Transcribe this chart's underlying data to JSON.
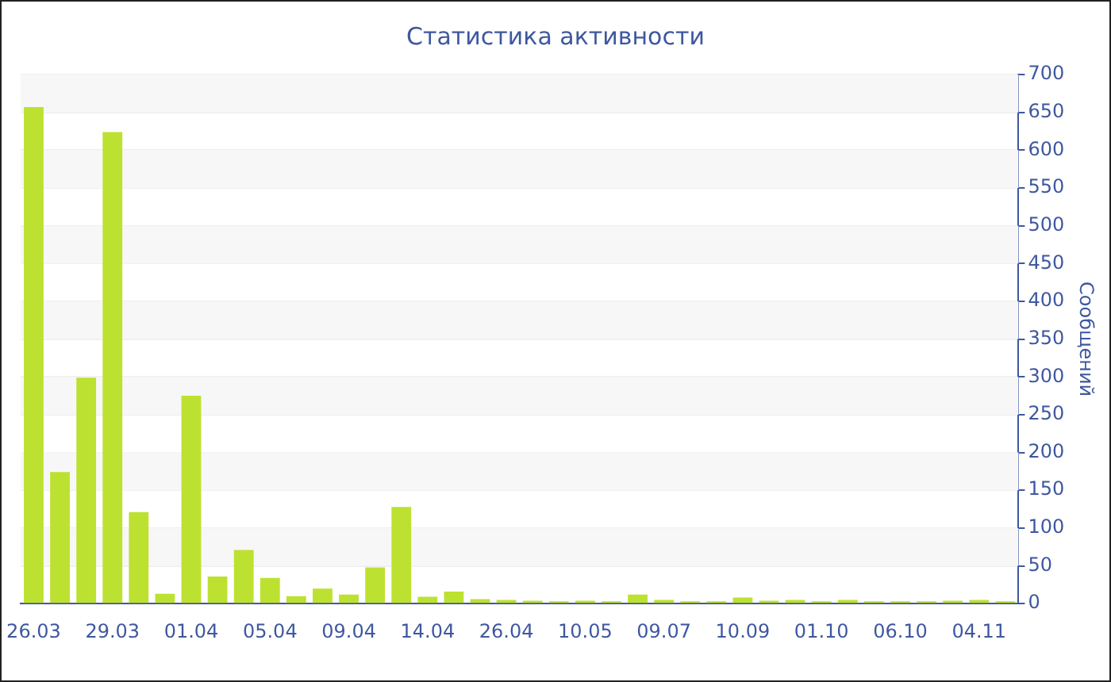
{
  "chart_data": {
    "type": "bar",
    "title": "Статистика активности",
    "ylabel": "Сообщений",
    "categories": [
      "26.03",
      null,
      null,
      "29.03",
      null,
      null,
      "01.04",
      null,
      null,
      "05.04",
      null,
      null,
      "09.04",
      null,
      null,
      "14.04",
      null,
      null,
      "26.04",
      null,
      null,
      "10.05",
      null,
      null,
      "09.07",
      null,
      null,
      "10.09",
      null,
      null,
      "01.10",
      null,
      null,
      "06.10",
      null,
      null,
      "04.11",
      null
    ],
    "values": [
      657,
      174,
      299,
      624,
      121,
      13,
      275,
      36,
      71,
      34,
      10,
      20,
      12,
      48,
      128,
      9,
      16,
      6,
      5,
      4,
      3,
      4,
      3,
      12,
      5,
      3,
      3,
      8,
      4,
      5,
      3,
      5,
      3,
      3,
      3,
      4,
      5,
      3
    ],
    "color": "#bde130",
    "ylim": [
      0,
      700
    ],
    "yticks": [
      0,
      50,
      100,
      150,
      200,
      250,
      300,
      350,
      400,
      450,
      500,
      550,
      600,
      650,
      700
    ],
    "grid": true,
    "legend": false
  }
}
